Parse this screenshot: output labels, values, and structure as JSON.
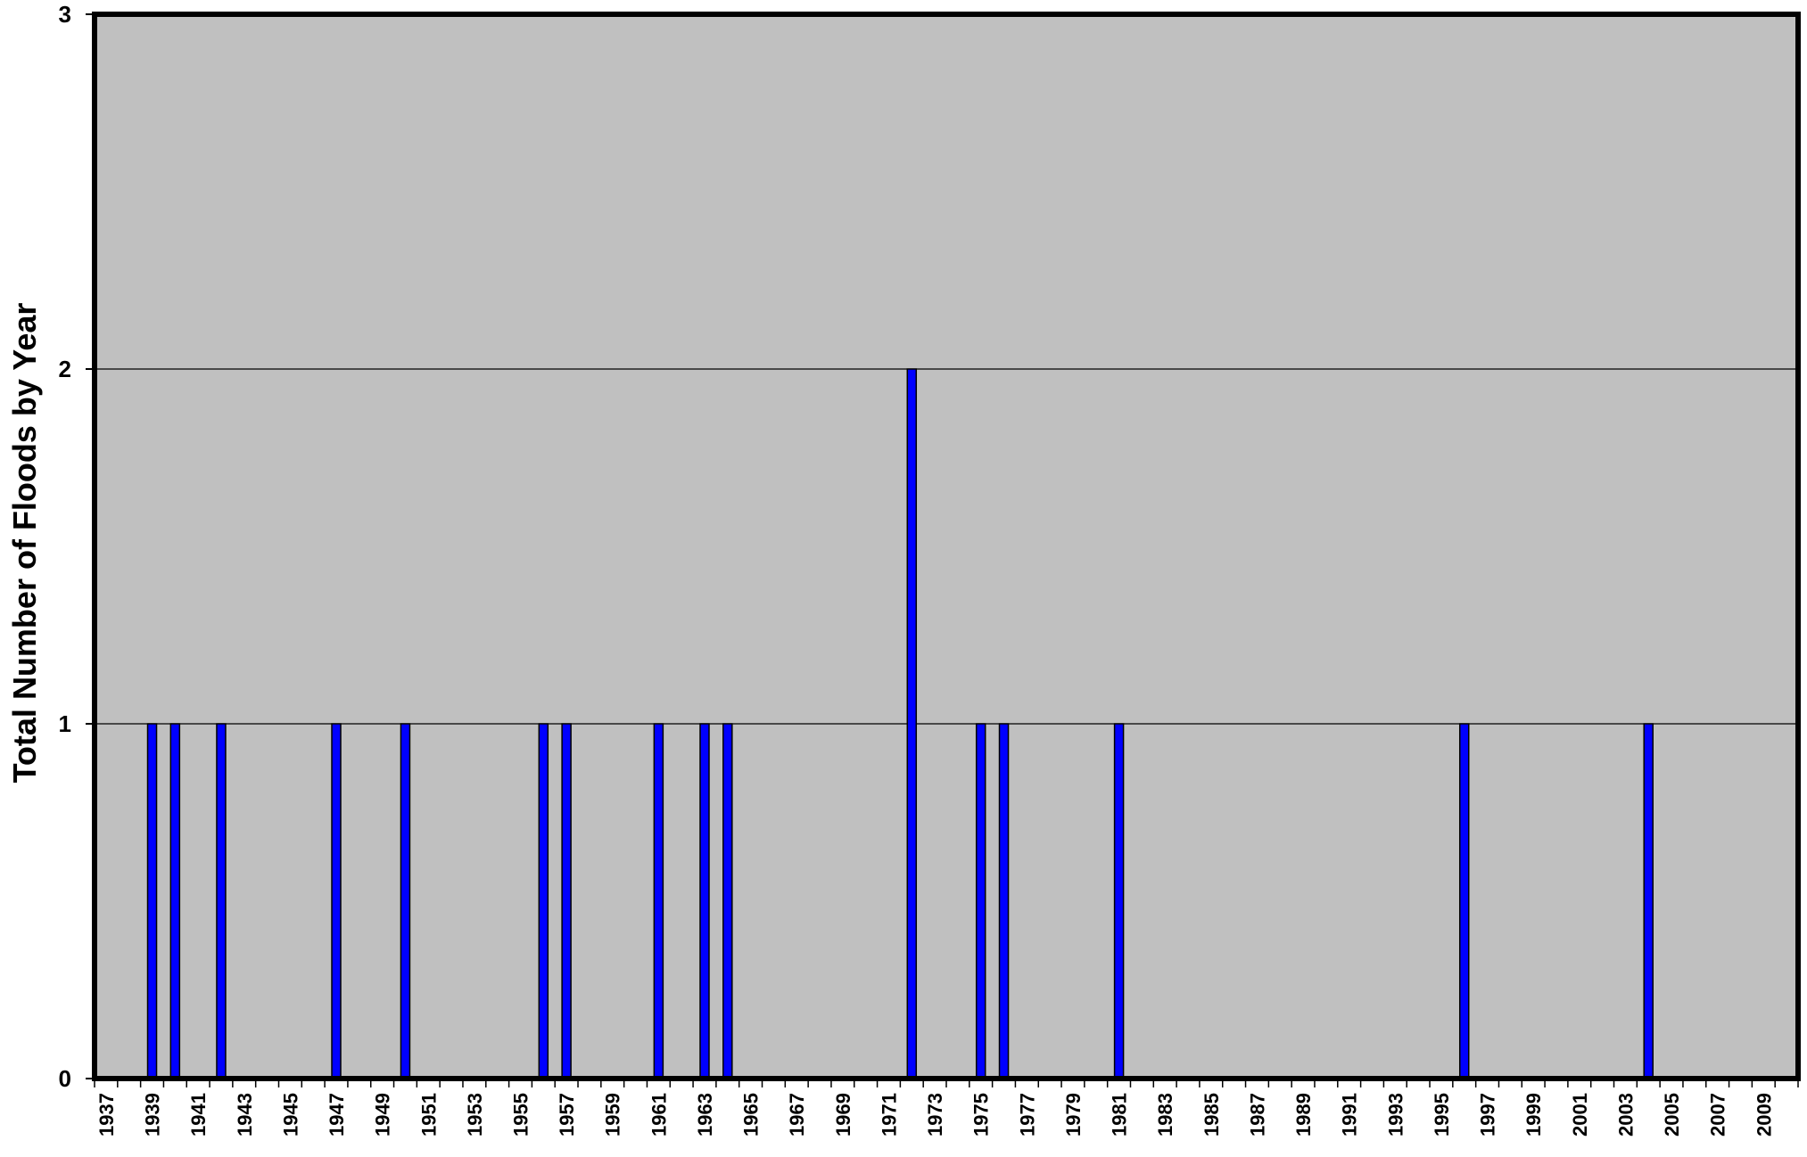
{
  "chart_data": {
    "type": "bar",
    "title": "",
    "xlabel": "",
    "ylabel": "Total Number of Floods by Year",
    "ylim": [
      0,
      3
    ],
    "yticks": [
      "0",
      "1",
      "2",
      "3"
    ],
    "grid": true,
    "x_range": [
      1937,
      2010
    ],
    "x_tick_labels": [
      "1937",
      "1939",
      "1941",
      "1943",
      "1945",
      "1947",
      "1949",
      "1951",
      "1953",
      "1955",
      "1957",
      "1959",
      "1961",
      "1963",
      "1965",
      "1967",
      "1969",
      "1971",
      "1973",
      "1975",
      "1977",
      "1979",
      "1981",
      "1983",
      "1985",
      "1987",
      "1989",
      "1991",
      "1993",
      "1995",
      "1997",
      "1999",
      "2001",
      "2003",
      "2005",
      "2007",
      "2009"
    ],
    "categories": [
      1939,
      1940,
      1942,
      1947,
      1950,
      1956,
      1957,
      1961,
      1963,
      1964,
      1972,
      1975,
      1976,
      1981,
      1996,
      2004
    ],
    "values": [
      1,
      1,
      1,
      1,
      1,
      1,
      1,
      1,
      1,
      1,
      2,
      1,
      1,
      1,
      1,
      1
    ],
    "colors": {
      "bar": "#0000ff",
      "plot_bg": "#c0c0c0",
      "frame": "#000000"
    }
  }
}
